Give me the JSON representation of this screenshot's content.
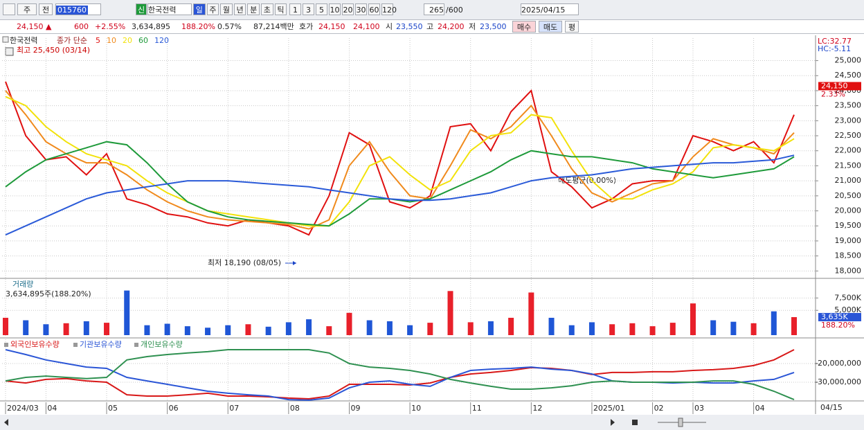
{
  "toolbar": {
    "market": "주",
    "prev": "전",
    "code": "015760",
    "credit": "신",
    "name": "한국전력",
    "periods": [
      "일",
      "주",
      "월",
      "년",
      "분",
      "초",
      "틱"
    ],
    "intervals": [
      "1",
      "3",
      "5",
      "10",
      "20",
      "30",
      "60",
      "120"
    ],
    "count": "265",
    "max": "/600",
    "date": "2025/04/15"
  },
  "quote": {
    "price": "24,150 ▲",
    "change": "600",
    "change_pct": "+2.55%",
    "volume": "3,634,895",
    "volume_ratio": "188.20%",
    "turnover": "0.57%",
    "amount": "87,214백만",
    "ask_label": "호가",
    "ask": "24,150",
    "bid": "24,100",
    "open_label": "시",
    "open": "23,550",
    "high_label": "고",
    "high": "24,200",
    "low_label": "저",
    "low": "23,500",
    "buy": "매수",
    "sell": "매도",
    "avg": "평"
  },
  "chart_data": [
    {
      "type": "line",
      "title": "한국전력",
      "subtitle": "종가 단순",
      "lc": "LC:32.77",
      "hc": "HC:-5.11",
      "last_date": "04/15",
      "high_note": "최고 25,450 (03/14)",
      "low_note": "최저 18,190 (08/05)",
      "trade_note": "매도평균(0.00%)",
      "current": {
        "value": 24150,
        "label": "24,150"
      },
      "current_change": "2.33%",
      "grid": true,
      "categories": [
        "2024/03",
        null,
        "04",
        null,
        null,
        "05",
        null,
        null,
        "06",
        null,
        null,
        "07",
        null,
        null,
        "08",
        null,
        null,
        "09",
        null,
        null,
        "10",
        null,
        null,
        "11",
        null,
        null,
        "12",
        null,
        null,
        "2025/01",
        null,
        null,
        "02",
        null,
        "03",
        null,
        null,
        "04",
        null,
        null
      ],
      "ylim": [
        17800,
        25750
      ],
      "yticks": [
        {
          "value": 18000,
          "label": "18,000"
        },
        {
          "value": 18500,
          "label": "18,500"
        },
        {
          "value": 19000,
          "label": "19,000"
        },
        {
          "value": 19500,
          "label": "19,500"
        },
        {
          "value": 20000,
          "label": "20,000"
        },
        {
          "value": 20500,
          "label": "20,500"
        },
        {
          "value": 21000,
          "label": "21,000"
        },
        {
          "value": 21500,
          "label": "21,500"
        },
        {
          "value": 22000,
          "label": "22,000"
        },
        {
          "value": 22500,
          "label": "22,500"
        },
        {
          "value": 23000,
          "label": "23,000"
        },
        {
          "value": 23500,
          "label": "23,500"
        },
        {
          "value": 24000,
          "label": "24,000"
        },
        {
          "value": 24500,
          "label": "24,500"
        },
        {
          "value": 25000,
          "label": "25,000"
        }
      ],
      "series": [
        {
          "name": "5",
          "color": "#e01010",
          "values": [
            24300,
            22500,
            21700,
            21800,
            21200,
            21900,
            20400,
            20200,
            19900,
            19800,
            19600,
            19500,
            19700,
            19600,
            19500,
            19200,
            20500,
            22600,
            22200,
            20300,
            20100,
            20500,
            22800,
            22900,
            22000,
            23300,
            24000,
            21300,
            20800,
            20100,
            20400,
            20900,
            21000,
            21000,
            22500,
            22300,
            22000,
            22300,
            21600,
            23200
          ]
        },
        {
          "name": "10",
          "color": "#f08a1c",
          "values": [
            24000,
            23200,
            22300,
            21900,
            21600,
            21600,
            21200,
            20700,
            20300,
            20000,
            19800,
            19700,
            19650,
            19600,
            19550,
            19400,
            19700,
            21500,
            22300,
            21300,
            20500,
            20400,
            21500,
            22700,
            22400,
            22800,
            23500,
            22500,
            21400,
            20600,
            20300,
            20600,
            20900,
            21000,
            21800,
            22400,
            22200,
            22100,
            21900,
            22600
          ]
        },
        {
          "name": "20",
          "color": "#f2e20a",
          "values": [
            23800,
            23500,
            22800,
            22300,
            21900,
            21700,
            21500,
            21000,
            20600,
            20300,
            20000,
            19900,
            19800,
            19700,
            19600,
            19500,
            19500,
            20300,
            21500,
            21800,
            21200,
            20700,
            21000,
            22000,
            22500,
            22600,
            23200,
            23100,
            22000,
            21000,
            20400,
            20400,
            20700,
            20900,
            21300,
            22100,
            22200,
            22100,
            22000,
            22400
          ]
        },
        {
          "name": "60",
          "color": "#1e9a3a",
          "values": [
            20800,
            21300,
            21700,
            21900,
            22100,
            22300,
            22200,
            21600,
            20900,
            20300,
            20000,
            19800,
            19700,
            19650,
            19600,
            19550,
            19500,
            19900,
            20400,
            20400,
            20300,
            20400,
            20700,
            21000,
            21300,
            21700,
            22000,
            21900,
            21800,
            21800,
            21700,
            21600,
            21400,
            21300,
            21200,
            21100,
            21200,
            21300,
            21400,
            21800
          ]
        },
        {
          "name": "120",
          "color": "#2a5ad8",
          "values": [
            19200,
            19500,
            19800,
            20100,
            20400,
            20600,
            20700,
            20800,
            20900,
            21000,
            21000,
            21000,
            20950,
            20900,
            20850,
            20800,
            20700,
            20600,
            20500,
            20400,
            20350,
            20350,
            20400,
            20500,
            20600,
            20800,
            21000,
            21100,
            21150,
            21200,
            21300,
            21400,
            21450,
            21500,
            21550,
            21600,
            21600,
            21650,
            21700,
            21850
          ]
        }
      ]
    },
    {
      "type": "bar",
      "title": "거래량",
      "subtitle": "3,634,895주(188.20%)",
      "up_color": "#e8202a",
      "down_color": "#1f56d6",
      "current": {
        "value": 3635000,
        "label": "3,635K"
      },
      "current_ratio": "188.20%",
      "ylim": [
        0,
        9500000
      ],
      "yticks": [
        {
          "value": 5000000,
          "label": "5,000K"
        },
        {
          "value": 7500000,
          "label": "7,500K"
        }
      ],
      "values": [
        3500000,
        3000000,
        2200000,
        2400000,
        2800000,
        2500000,
        9000000,
        2000000,
        2300000,
        1800000,
        1500000,
        2000000,
        2200000,
        1700000,
        2600000,
        3200000,
        1800000,
        4500000,
        3000000,
        2800000,
        2000000,
        2500000,
        8900000,
        2600000,
        2800000,
        3500000,
        8600000,
        3500000,
        2000000,
        2600000,
        2200000,
        2400000,
        1800000,
        2500000,
        6400000,
        3000000,
        2700000,
        2400000,
        4800000,
        3635000
      ]
    },
    {
      "type": "line",
      "ylim": [
        -40000000,
        -7800000
      ],
      "yticks": [
        {
          "value": -20000000,
          "label": "-20,000,000"
        },
        {
          "value": -30000000,
          "label": "-30,000,000"
        }
      ],
      "series": [
        {
          "name": "외국인보유수량",
          "color": "#d81818",
          "values": [
            -29300000,
            -30400000,
            -28500000,
            -28100000,
            -29300000,
            -30000000,
            -36700000,
            -37400000,
            -37400000,
            -36700000,
            -35900000,
            -37400000,
            -37400000,
            -37800000,
            -38500000,
            -38900000,
            -37400000,
            -31100000,
            -31100000,
            -31100000,
            -31500000,
            -30400000,
            -27400000,
            -25600000,
            -24800000,
            -23700000,
            -22200000,
            -22600000,
            -23700000,
            -25900000,
            -24800000,
            -24800000,
            -24400000,
            -24400000,
            -23700000,
            -23300000,
            -22600000,
            -21100000,
            -18100000,
            -12600000
          ]
        },
        {
          "name": "기관보유수량",
          "color": "#2a55d6",
          "values": [
            -12600000,
            -15200000,
            -18100000,
            -20000000,
            -21900000,
            -22600000,
            -27400000,
            -29300000,
            -31100000,
            -33000000,
            -34800000,
            -35900000,
            -36700000,
            -37400000,
            -39300000,
            -39600000,
            -38500000,
            -33000000,
            -30000000,
            -29300000,
            -31100000,
            -32200000,
            -27400000,
            -23700000,
            -23000000,
            -22600000,
            -21900000,
            -23000000,
            -23700000,
            -25600000,
            -29300000,
            -30000000,
            -30000000,
            -30400000,
            -30000000,
            -30400000,
            -30400000,
            -29300000,
            -28500000,
            -24800000
          ]
        },
        {
          "name": "개인보유수량",
          "color": "#2e9050",
          "values": [
            -29300000,
            -27400000,
            -26700000,
            -27400000,
            -28100000,
            -27400000,
            -18100000,
            -16300000,
            -15200000,
            -14400000,
            -13700000,
            -12600000,
            -12600000,
            -12600000,
            -12600000,
            -12600000,
            -14400000,
            -20000000,
            -21900000,
            -22600000,
            -23700000,
            -25600000,
            -28500000,
            -30400000,
            -32200000,
            -33700000,
            -33700000,
            -33000000,
            -31900000,
            -30000000,
            -29300000,
            -30000000,
            -30000000,
            -30000000,
            -30000000,
            -29300000,
            -29300000,
            -31100000,
            -34800000,
            -39300000
          ]
        }
      ]
    }
  ]
}
